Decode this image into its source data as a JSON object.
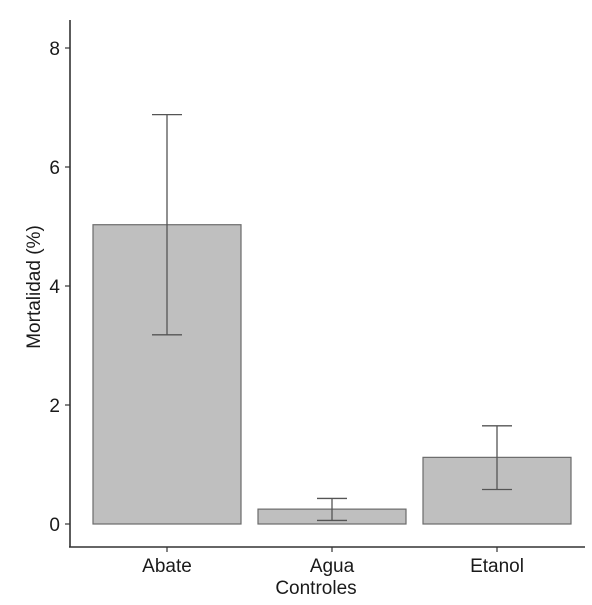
{
  "chart_data": {
    "type": "bar",
    "categories": [
      "Abate",
      "Agua",
      "Etanol"
    ],
    "values": [
      5.03,
      0.25,
      1.12
    ],
    "error_low": [
      3.18,
      0.06,
      0.58
    ],
    "error_high": [
      6.88,
      0.43,
      1.65
    ],
    "xlabel": "Controles",
    "ylabel": "Mortalidad (%)",
    "ylim": [
      0,
      8
    ],
    "yticks": [
      0,
      2,
      4,
      6,
      8
    ],
    "grid": false,
    "legend": "none",
    "colors": {
      "bar_fill": "#bfbfbf",
      "bar_stroke": "#6b6b6b",
      "error_bar": "#555555"
    }
  }
}
